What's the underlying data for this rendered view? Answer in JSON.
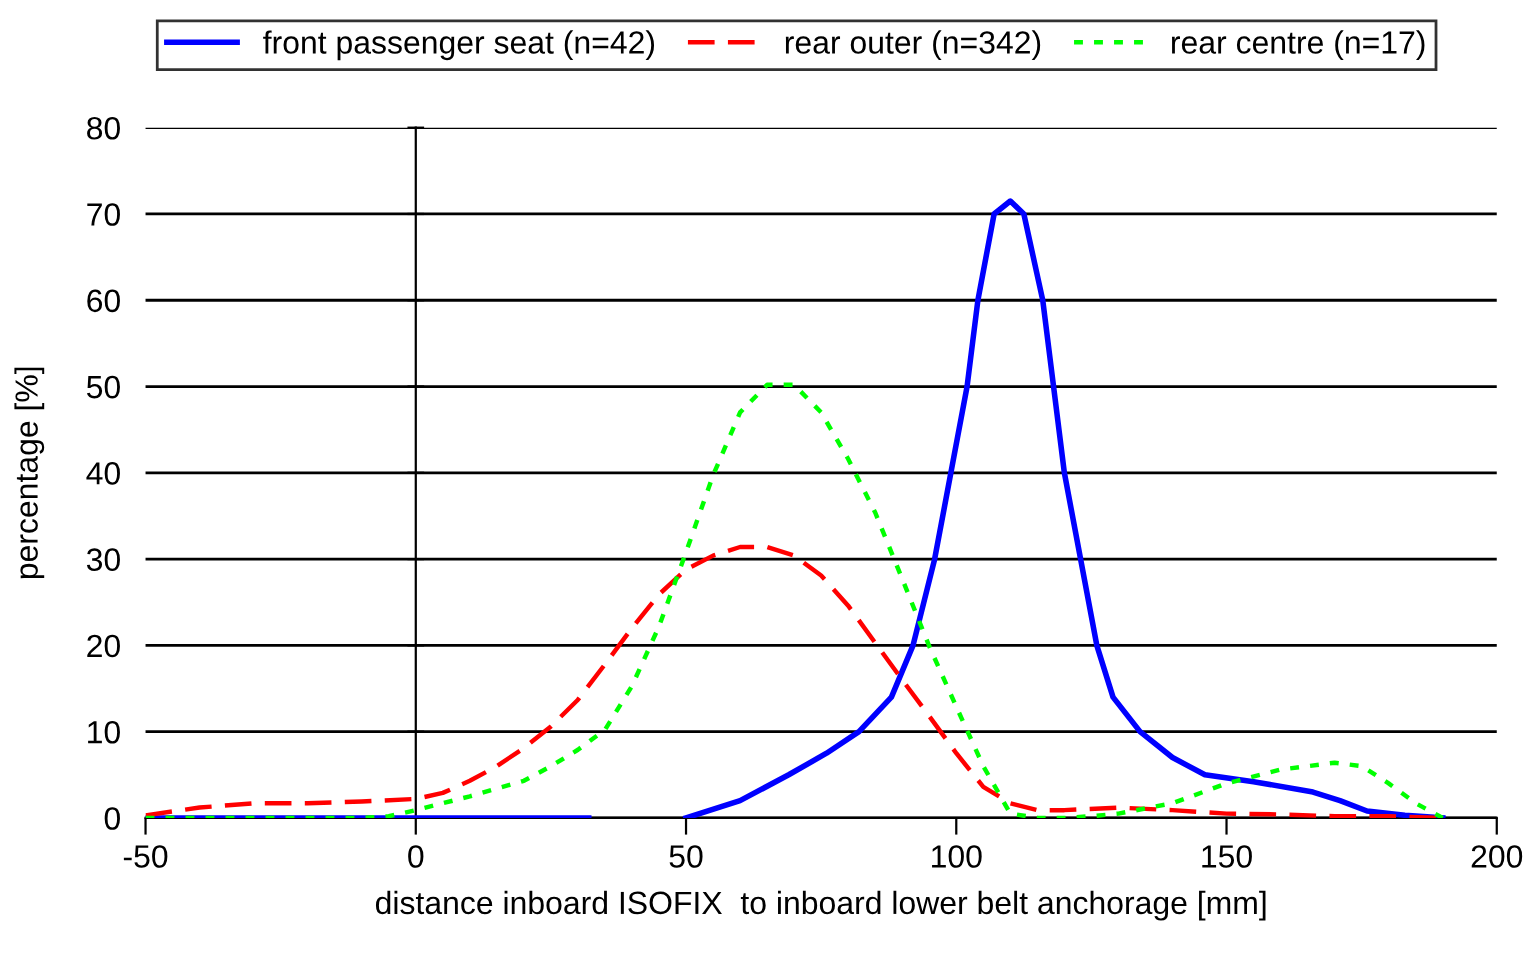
{
  "chart_data": {
    "type": "line",
    "xlabel": "distance inboard ISOFIX  to inboard lower belt anchorage [mm]",
    "ylabel": "percentage [%]",
    "xlim": [
      -50,
      200
    ],
    "xticks": [
      -50,
      0,
      50,
      100,
      150,
      200
    ],
    "ylim": [
      0,
      80
    ],
    "yticks": [
      0,
      10,
      20,
      30,
      40,
      50,
      60,
      70,
      80
    ],
    "grid": "y",
    "legend": "top",
    "marker": "none",
    "series": [
      {
        "name": "front passenger seat (n=42)",
        "color": "#0000ff",
        "line_style": "solid",
        "x": [
          -50,
          -20,
          10,
          32,
          40,
          50,
          60,
          69,
          76,
          82,
          88,
          92,
          96,
          99,
          102,
          104,
          107,
          110,
          112.5,
          116,
          118,
          120,
          123,
          126,
          129,
          134,
          140,
          146,
          155,
          166,
          171,
          176,
          183,
          190
        ],
        "values": [
          0,
          0,
          0,
          0,
          null,
          0,
          2,
          5,
          7.5,
          10,
          14,
          20,
          30,
          40,
          50,
          60,
          70,
          71.5,
          70,
          60,
          50,
          40,
          30,
          20,
          14,
          10,
          7,
          5,
          4.2,
          3,
          2,
          0.8,
          0.3,
          0
        ]
      },
      {
        "name": "rear outer (n=342)",
        "color": "#ff0000",
        "line_style": "dashed",
        "x": [
          -50,
          -40,
          -30,
          -20,
          -10,
          0,
          5,
          10,
          15,
          20,
          25,
          30,
          35,
          40,
          45,
          50,
          55,
          60,
          65,
          70,
          75,
          80,
          85,
          90,
          95,
          100,
          105,
          110,
          115,
          120,
          130,
          140,
          150,
          160,
          170,
          180,
          190
        ],
        "values": [
          0.3,
          1.2,
          1.7,
          1.7,
          1.9,
          2.2,
          2.9,
          4.3,
          6,
          8.1,
          10.6,
          13.7,
          17.8,
          22,
          25.9,
          28.8,
          30.4,
          31.4,
          31.4,
          30.4,
          28.1,
          24.6,
          20.3,
          16,
          11.8,
          7.5,
          3.6,
          1.7,
          0.9,
          0.9,
          1.2,
          0.9,
          0.5,
          0.4,
          0.2,
          0.2,
          0
        ]
      },
      {
        "name": "rear centre (n=17)",
        "color": "#00ff00",
        "line_style": "dotted",
        "x": [
          -50,
          -30,
          -10,
          -5,
          0,
          10,
          20,
          25,
          30,
          35,
          40,
          45,
          50,
          55,
          60,
          65,
          70,
          75,
          80,
          85,
          90,
          95,
          100,
          105,
          110,
          115,
          120,
          125,
          130,
          140,
          150,
          160,
          170,
          175,
          180,
          185,
          190
        ],
        "values": [
          0,
          0,
          0,
          0.2,
          0.9,
          2.5,
          4.3,
          6,
          7.9,
          10.2,
          15.3,
          22.2,
          30.8,
          39.7,
          47,
          50.2,
          50.2,
          47,
          41.6,
          35.4,
          27.7,
          19.9,
          12.9,
          6,
          0.5,
          0,
          0,
          0.2,
          0.5,
          1.7,
          4,
          5.6,
          6.4,
          6,
          4,
          1.7,
          0
        ]
      }
    ]
  }
}
